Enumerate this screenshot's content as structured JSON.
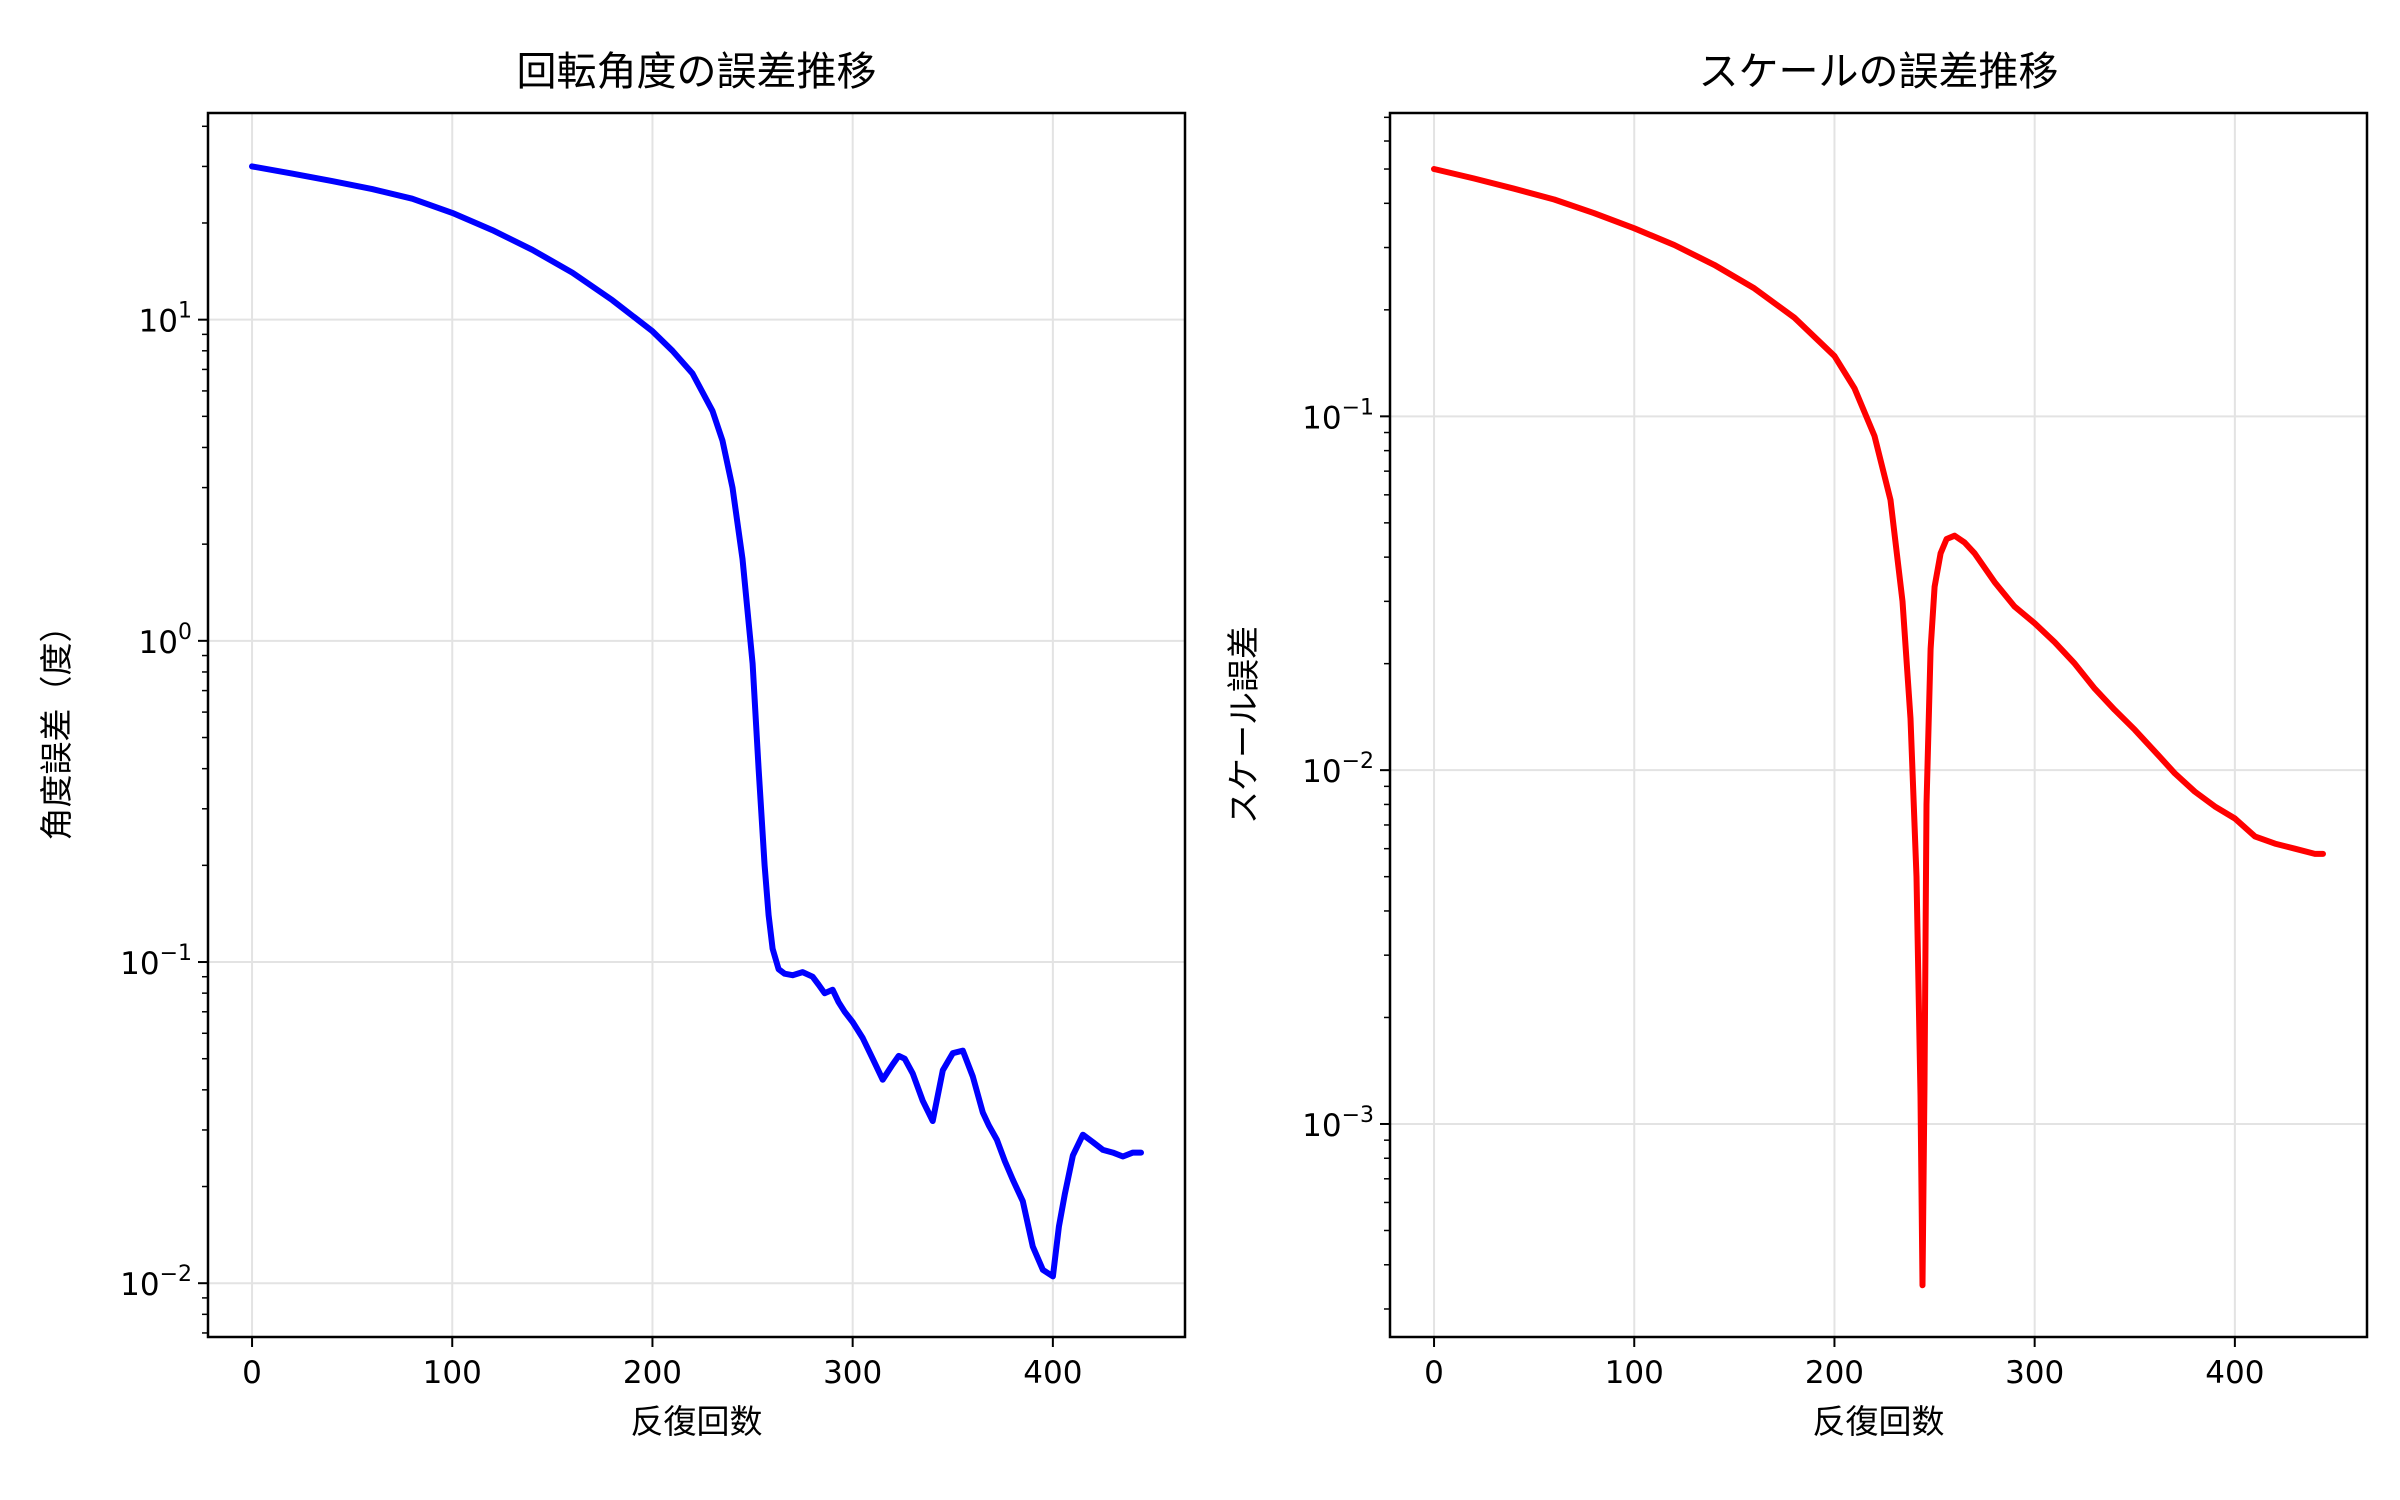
{
  "chart_data": [
    {
      "type": "line",
      "title": "回転角度の誤差推移",
      "xlabel": "反復回数",
      "ylabel": "角度誤差（度）",
      "yscale": "log",
      "xlim": [
        -22,
        466
      ],
      "ylim": [
        0.0068,
        44
      ],
      "xticks": [
        0,
        100,
        200,
        300,
        400
      ],
      "yticks": [
        {
          "base": "10",
          "exp": "−2",
          "value": 0.01
        },
        {
          "base": "10",
          "exp": "−1",
          "value": 0.1
        },
        {
          "base": "10",
          "exp": "0",
          "value": 1
        },
        {
          "base": "10",
          "exp": "1",
          "value": 10
        }
      ],
      "grid": true,
      "series": [
        {
          "color": "#0000ff",
          "x": [
            0,
            20,
            40,
            60,
            80,
            100,
            120,
            140,
            160,
            180,
            200,
            210,
            220,
            230,
            235,
            240,
            245,
            250,
            253,
            256,
            258,
            260,
            263,
            266,
            270,
            275,
            280,
            283,
            286,
            290,
            293,
            296,
            300,
            305,
            310,
            315,
            320,
            323,
            326,
            330,
            335,
            340,
            345,
            350,
            355,
            360,
            365,
            368,
            372,
            376,
            380,
            385,
            390,
            395,
            400,
            403,
            406,
            410,
            415,
            420,
            425,
            430,
            435,
            440,
            444
          ],
          "y": [
            30,
            28.5,
            27,
            25.5,
            23.8,
            21.5,
            19,
            16.5,
            14,
            11.5,
            9.2,
            8,
            6.8,
            5.2,
            4.2,
            3.0,
            1.8,
            0.85,
            0.4,
            0.2,
            0.14,
            0.11,
            0.095,
            0.092,
            0.091,
            0.093,
            0.09,
            0.085,
            0.08,
            0.082,
            0.075,
            0.07,
            0.065,
            0.058,
            0.05,
            0.043,
            0.048,
            0.051,
            0.05,
            0.045,
            0.037,
            0.032,
            0.046,
            0.052,
            0.053,
            0.044,
            0.034,
            0.031,
            0.028,
            0.024,
            0.021,
            0.018,
            0.013,
            0.011,
            0.0105,
            0.015,
            0.019,
            0.025,
            0.029,
            0.0275,
            0.026,
            0.0255,
            0.0248,
            0.0255,
            0.0255
          ]
        }
      ]
    },
    {
      "type": "line",
      "title": "スケールの誤差推移",
      "xlabel": "反復回数",
      "ylabel": "スケール誤差",
      "yscale": "log",
      "xlim": [
        -22,
        466
      ],
      "ylim": [
        0.00025,
        0.72
      ],
      "xticks": [
        0,
        100,
        200,
        300,
        400
      ],
      "yticks": [
        {
          "base": "10",
          "exp": "−3",
          "value": 0.001
        },
        {
          "base": "10",
          "exp": "−2",
          "value": 0.01
        },
        {
          "base": "10",
          "exp": "−1",
          "value": 0.1
        }
      ],
      "grid": true,
      "series": [
        {
          "color": "#ff0000",
          "x": [
            0,
            20,
            40,
            60,
            80,
            100,
            120,
            140,
            160,
            180,
            200,
            210,
            220,
            228,
            234,
            238,
            241,
            243,
            244,
            245,
            246,
            248,
            250,
            253,
            256,
            260,
            265,
            270,
            280,
            290,
            300,
            310,
            320,
            330,
            340,
            350,
            360,
            370,
            380,
            390,
            400,
            410,
            420,
            430,
            440,
            444
          ],
          "y": [
            0.5,
            0.47,
            0.44,
            0.41,
            0.375,
            0.34,
            0.305,
            0.268,
            0.23,
            0.19,
            0.148,
            0.12,
            0.088,
            0.058,
            0.03,
            0.014,
            0.005,
            0.0012,
            0.00035,
            0.0013,
            0.008,
            0.022,
            0.033,
            0.041,
            0.045,
            0.046,
            0.044,
            0.041,
            0.034,
            0.029,
            0.026,
            0.023,
            0.02,
            0.017,
            0.0148,
            0.013,
            0.0113,
            0.0098,
            0.0087,
            0.0079,
            0.0073,
            0.0065,
            0.0062,
            0.006,
            0.0058,
            0.0058
          ]
        }
      ]
    }
  ]
}
